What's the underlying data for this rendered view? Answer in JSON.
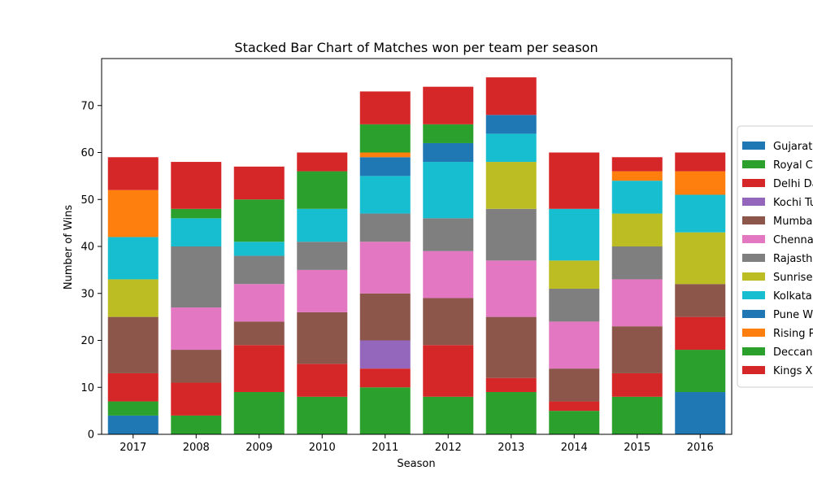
{
  "chart_data": {
    "type": "bar",
    "stacked": true,
    "title": "Stacked Bar Chart of Matches won per team per season",
    "xlabel": "Season",
    "ylabel": "Number of Wins",
    "ylim": [
      0,
      80
    ],
    "yticks": [
      0,
      10,
      20,
      30,
      40,
      50,
      60,
      70
    ],
    "categories": [
      "2017",
      "2008",
      "2009",
      "2010",
      "2011",
      "2012",
      "2013",
      "2014",
      "2015",
      "2016"
    ],
    "legend_position": "right",
    "series": [
      {
        "name": "Gujarat Lions",
        "color": "#1f77b4",
        "values": [
          4,
          0,
          0,
          0,
          0,
          0,
          0,
          0,
          0,
          9
        ]
      },
      {
        "name": "Royal Challengers Bangalore",
        "color": "#2ca02c",
        "values": [
          3,
          4,
          9,
          8,
          10,
          8,
          9,
          5,
          8,
          9
        ]
      },
      {
        "name": "Delhi Daredevils",
        "color": "#d62728",
        "values": [
          6,
          7,
          10,
          7,
          4,
          11,
          3,
          2,
          5,
          7
        ]
      },
      {
        "name": "Kochi Tuskers Kerala",
        "color": "#9467bd",
        "values": [
          0,
          0,
          0,
          0,
          6,
          0,
          0,
          0,
          0,
          0
        ]
      },
      {
        "name": "Mumbai Indians",
        "color": "#8c564b",
        "values": [
          12,
          7,
          5,
          11,
          10,
          10,
          13,
          7,
          10,
          7
        ]
      },
      {
        "name": "Chennai Super Kings",
        "color": "#e377c2",
        "values": [
          0,
          9,
          8,
          9,
          11,
          10,
          12,
          10,
          10,
          0
        ]
      },
      {
        "name": "Rajasthan Royals",
        "color": "#7f7f7f",
        "values": [
          0,
          13,
          6,
          6,
          6,
          7,
          11,
          7,
          7,
          0
        ]
      },
      {
        "name": "Sunrisers Hyderabad",
        "color": "#bcbd22",
        "values": [
          8,
          0,
          0,
          0,
          0,
          0,
          10,
          6,
          7,
          11
        ]
      },
      {
        "name": "Kolkata Knight Riders",
        "color": "#17becf",
        "values": [
          9,
          6,
          3,
          7,
          8,
          12,
          6,
          11,
          7,
          8
        ]
      },
      {
        "name": "Pune Warriors",
        "color": "#1f77b4",
        "values": [
          0,
          0,
          0,
          0,
          4,
          4,
          4,
          0,
          0,
          0
        ]
      },
      {
        "name": "Rising Pune Supergiants",
        "color": "#ff7f0e",
        "values": [
          10,
          0,
          0,
          0,
          1,
          0,
          0,
          0,
          2,
          5
        ]
      },
      {
        "name": "Deccan Chargers",
        "color": "#2ca02c",
        "values": [
          0,
          2,
          9,
          8,
          6,
          4,
          0,
          0,
          0,
          0
        ]
      },
      {
        "name": "Kings XI Punjab",
        "color": "#d62728",
        "values": [
          7,
          10,
          7,
          4,
          7,
          8,
          8,
          12,
          3,
          4
        ]
      }
    ]
  }
}
